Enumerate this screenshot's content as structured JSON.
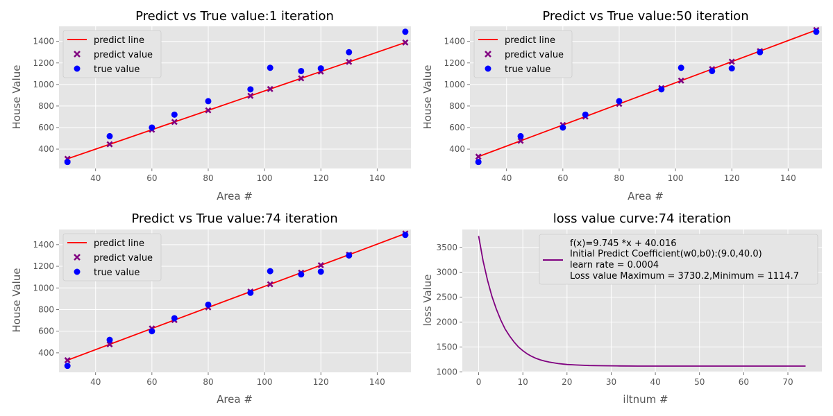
{
  "chart_data": [
    {
      "type": "scatter",
      "title": "Predict vs True value:1 iteration",
      "xlabel": "Area #",
      "ylabel": "House Value",
      "xlim": [
        27,
        152
      ],
      "ylim": [
        220,
        1540
      ],
      "xticks": [
        40,
        60,
        80,
        100,
        120,
        140
      ],
      "yticks": [
        400,
        600,
        800,
        1000,
        1200,
        1400
      ],
      "grid": true,
      "legend": [
        "predict line",
        "predict value",
        "true value"
      ],
      "legend_position": "upper-left",
      "x": [
        30,
        45,
        60,
        68,
        80,
        95,
        102,
        113,
        120,
        130,
        150
      ],
      "series": [
        {
          "name": "predict line",
          "kind": "line",
          "color": "#ff0000",
          "values": [
            310,
            445,
            580,
            652,
            760,
            895,
            958,
            1057,
            1120,
            1210,
            1390
          ]
        },
        {
          "name": "predict value",
          "kind": "x-marker",
          "color": "#800080",
          "values": [
            310,
            445,
            580,
            652,
            760,
            895,
            958,
            1057,
            1120,
            1210,
            1390
          ]
        },
        {
          "name": "true value",
          "kind": "dot",
          "color": "#0000ff",
          "values": [
            280,
            520,
            600,
            720,
            845,
            955,
            1155,
            1125,
            1150,
            1300,
            1490
          ]
        }
      ]
    },
    {
      "type": "scatter",
      "title": "Predict vs True value:50 iteration",
      "xlabel": "Area #",
      "ylabel": "House Value",
      "xlim": [
        27,
        152
      ],
      "ylim": [
        220,
        1540
      ],
      "xticks": [
        40,
        60,
        80,
        100,
        120,
        140
      ],
      "yticks": [
        400,
        600,
        800,
        1000,
        1200,
        1400
      ],
      "grid": true,
      "legend": [
        "predict line",
        "predict value",
        "true value"
      ],
      "legend_position": "upper-left",
      "x": [
        30,
        45,
        60,
        68,
        80,
        95,
        102,
        113,
        120,
        130,
        150
      ],
      "series": [
        {
          "name": "predict line",
          "kind": "line",
          "color": "#ff0000",
          "values": [
            330,
            477,
            624,
            702,
            820,
            967,
            1036,
            1143,
            1212,
            1310,
            1506
          ]
        },
        {
          "name": "predict value",
          "kind": "x-marker",
          "color": "#800080",
          "values": [
            330,
            477,
            624,
            702,
            820,
            967,
            1036,
            1143,
            1212,
            1310,
            1506
          ]
        },
        {
          "name": "true value",
          "kind": "dot",
          "color": "#0000ff",
          "values": [
            280,
            520,
            600,
            720,
            845,
            955,
            1155,
            1125,
            1150,
            1300,
            1490
          ]
        }
      ]
    },
    {
      "type": "scatter",
      "title": "Predict vs True value:74 iteration",
      "xlabel": "Area #",
      "ylabel": "House Value",
      "xlim": [
        27,
        152
      ],
      "ylim": [
        220,
        1540
      ],
      "xticks": [
        40,
        60,
        80,
        100,
        120,
        140
      ],
      "yticks": [
        400,
        600,
        800,
        1000,
        1200,
        1400
      ],
      "grid": true,
      "legend": [
        "predict line",
        "predict value",
        "true value"
      ],
      "legend_position": "upper-left",
      "x": [
        30,
        45,
        60,
        68,
        80,
        95,
        102,
        113,
        120,
        130,
        150
      ],
      "series": [
        {
          "name": "predict line",
          "kind": "line",
          "color": "#ff0000",
          "values": [
            332,
            479,
            625,
            703,
            820,
            966,
            1034,
            1141,
            1210,
            1307,
            1502
          ]
        },
        {
          "name": "predict value",
          "kind": "x-marker",
          "color": "#800080",
          "values": [
            332,
            479,
            625,
            703,
            820,
            966,
            1034,
            1141,
            1210,
            1307,
            1502
          ]
        },
        {
          "name": "true value",
          "kind": "dot",
          "color": "#0000ff",
          "values": [
            280,
            520,
            600,
            720,
            845,
            955,
            1155,
            1125,
            1150,
            1300,
            1490
          ]
        }
      ]
    },
    {
      "type": "line",
      "title": "loss value curve:74 iteration",
      "xlabel": "iltnum #",
      "ylabel": "loss Value",
      "xlim": [
        -3.7,
        77.7
      ],
      "ylim": [
        990,
        3860
      ],
      "xticks": [
        0,
        10,
        20,
        30,
        40,
        50,
        60,
        70
      ],
      "yticks": [
        1000,
        1500,
        2000,
        2500,
        3000,
        3500
      ],
      "grid": true,
      "legend_position": "upper-right",
      "legend_lines": [
        "f(x)=9.745 *x + 40.016",
        "Initial Predict Coefficient(w0,b0):(9.0,40.0)",
        "learn rate = 0.0004",
        "Loss value Maximum = 3730.2,Minimum = 1114.7"
      ],
      "series": [
        {
          "color": "#800080",
          "x": [
            0,
            1,
            2,
            3,
            4,
            5,
            6,
            7,
            8,
            9,
            10,
            11,
            12,
            13,
            14,
            15,
            16,
            18,
            20,
            22,
            25,
            28,
            32,
            36,
            40,
            45,
            50,
            55,
            60,
            65,
            70,
            74
          ],
          "values": [
            3730,
            3230,
            2840,
            2520,
            2260,
            2040,
            1860,
            1720,
            1600,
            1500,
            1425,
            1360,
            1310,
            1270,
            1240,
            1215,
            1195,
            1165,
            1148,
            1137,
            1127,
            1122,
            1118,
            1116,
            1115,
            1115,
            1115,
            1115,
            1115,
            1115,
            1115,
            1115
          ]
        }
      ]
    }
  ]
}
